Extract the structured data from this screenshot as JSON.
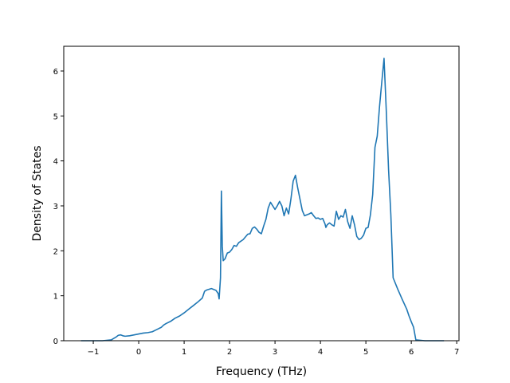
{
  "chart_data": {
    "type": "line",
    "title": "",
    "xlabel": "Frequency (THz)",
    "ylabel": "Density of States",
    "xlim": [
      -1.65,
      7.05
    ],
    "ylim": [
      0,
      6.55
    ],
    "xticks": [
      -1,
      0,
      1,
      2,
      3,
      4,
      5,
      6,
      7
    ],
    "yticks": [
      0,
      1,
      2,
      3,
      4,
      5,
      6
    ],
    "grid": false,
    "legend": "none",
    "color": "#1f77b4",
    "series": [
      {
        "x": [
          -1.27,
          -1.0,
          -0.8,
          -0.6,
          -0.5,
          -0.45,
          -0.4,
          -0.35,
          -0.3,
          -0.2,
          -0.1,
          0.0,
          0.1,
          0.2,
          0.3,
          0.4,
          0.5,
          0.55,
          0.6,
          0.7,
          0.8,
          0.9,
          1.0,
          1.1,
          1.2,
          1.3,
          1.4,
          1.45,
          1.5,
          1.6,
          1.7,
          1.75,
          1.77,
          1.8,
          1.82,
          1.84,
          1.86,
          1.9,
          1.95,
          2.0,
          2.05,
          2.1,
          2.15,
          2.2,
          2.3,
          2.4,
          2.45,
          2.5,
          2.55,
          2.6,
          2.65,
          2.7,
          2.75,
          2.8,
          2.85,
          2.9,
          2.95,
          3.0,
          3.05,
          3.1,
          3.15,
          3.2,
          3.25,
          3.3,
          3.35,
          3.4,
          3.45,
          3.5,
          3.55,
          3.6,
          3.65,
          3.7,
          3.75,
          3.8,
          3.85,
          3.9,
          3.95,
          4.0,
          4.05,
          4.1,
          4.12,
          4.15,
          4.2,
          4.25,
          4.3,
          4.35,
          4.4,
          4.45,
          4.5,
          4.55,
          4.6,
          4.65,
          4.7,
          4.75,
          4.8,
          4.85,
          4.9,
          4.95,
          5.0,
          5.05,
          5.1,
          5.15,
          5.2,
          5.25,
          5.3,
          5.35,
          5.4,
          5.45,
          5.5,
          5.55,
          5.6,
          5.7,
          5.8,
          5.9,
          5.95,
          6.0,
          6.05,
          6.1,
          6.3,
          6.5,
          6.72
        ],
        "y": [
          0.0,
          0.0,
          0.0,
          0.02,
          0.08,
          0.12,
          0.13,
          0.11,
          0.1,
          0.11,
          0.13,
          0.15,
          0.17,
          0.18,
          0.2,
          0.25,
          0.3,
          0.35,
          0.38,
          0.43,
          0.5,
          0.55,
          0.62,
          0.7,
          0.78,
          0.86,
          0.95,
          1.1,
          1.13,
          1.16,
          1.12,
          1.05,
          0.93,
          1.4,
          3.33,
          2.1,
          1.78,
          1.82,
          1.95,
          1.97,
          2.03,
          2.12,
          2.1,
          2.18,
          2.25,
          2.37,
          2.38,
          2.5,
          2.53,
          2.48,
          2.41,
          2.38,
          2.55,
          2.7,
          2.95,
          3.08,
          3.0,
          2.92,
          3.0,
          3.1,
          3.0,
          2.78,
          2.95,
          2.82,
          3.15,
          3.55,
          3.68,
          3.4,
          3.15,
          2.9,
          2.78,
          2.8,
          2.82,
          2.85,
          2.78,
          2.72,
          2.73,
          2.7,
          2.72,
          2.6,
          2.52,
          2.58,
          2.62,
          2.58,
          2.55,
          2.88,
          2.7,
          2.78,
          2.75,
          2.92,
          2.65,
          2.5,
          2.78,
          2.58,
          2.32,
          2.25,
          2.28,
          2.35,
          2.5,
          2.52,
          2.8,
          3.25,
          4.3,
          4.55,
          5.2,
          5.75,
          6.28,
          5.1,
          3.8,
          2.8,
          1.4,
          1.15,
          0.92,
          0.7,
          0.55,
          0.42,
          0.3,
          0.02,
          0.0,
          0.0,
          0.0
        ]
      }
    ]
  }
}
